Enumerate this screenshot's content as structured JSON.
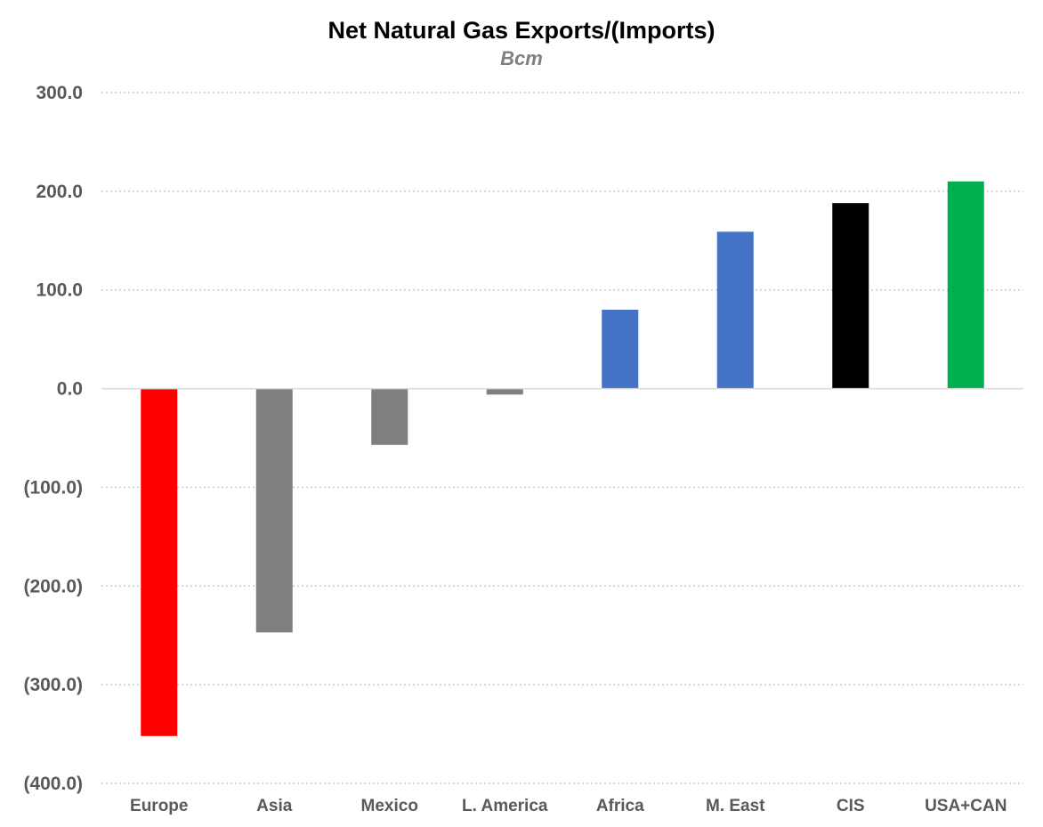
{
  "chart_data": {
    "type": "bar",
    "title": "Net Natural Gas Exports/(Imports)",
    "subtitle": "Bcm",
    "xlabel": "",
    "ylabel": "",
    "categories": [
      "Europe",
      "Asia",
      "Mexico",
      "L. America",
      "Africa",
      "M. East",
      "CIS",
      "USA+CAN"
    ],
    "values": [
      -352,
      -247,
      -57,
      -6,
      80,
      159,
      188,
      210
    ],
    "colors": [
      "#ff0000",
      "#7f7f7f",
      "#7f7f7f",
      "#7f7f7f",
      "#4472c4",
      "#4472c4",
      "#000000",
      "#00b050"
    ],
    "ylim": [
      -400,
      300
    ],
    "yticks": [
      300,
      200,
      100,
      0,
      -100,
      -200,
      -300,
      -400
    ],
    "ytick_labels": [
      "300.0",
      "200.0",
      "100.0",
      "0.0",
      "(100.0)",
      "(200.0)",
      "(300.0)",
      "(400.0)"
    ],
    "grid": true,
    "grid_style": "dotted",
    "legend": "none"
  }
}
